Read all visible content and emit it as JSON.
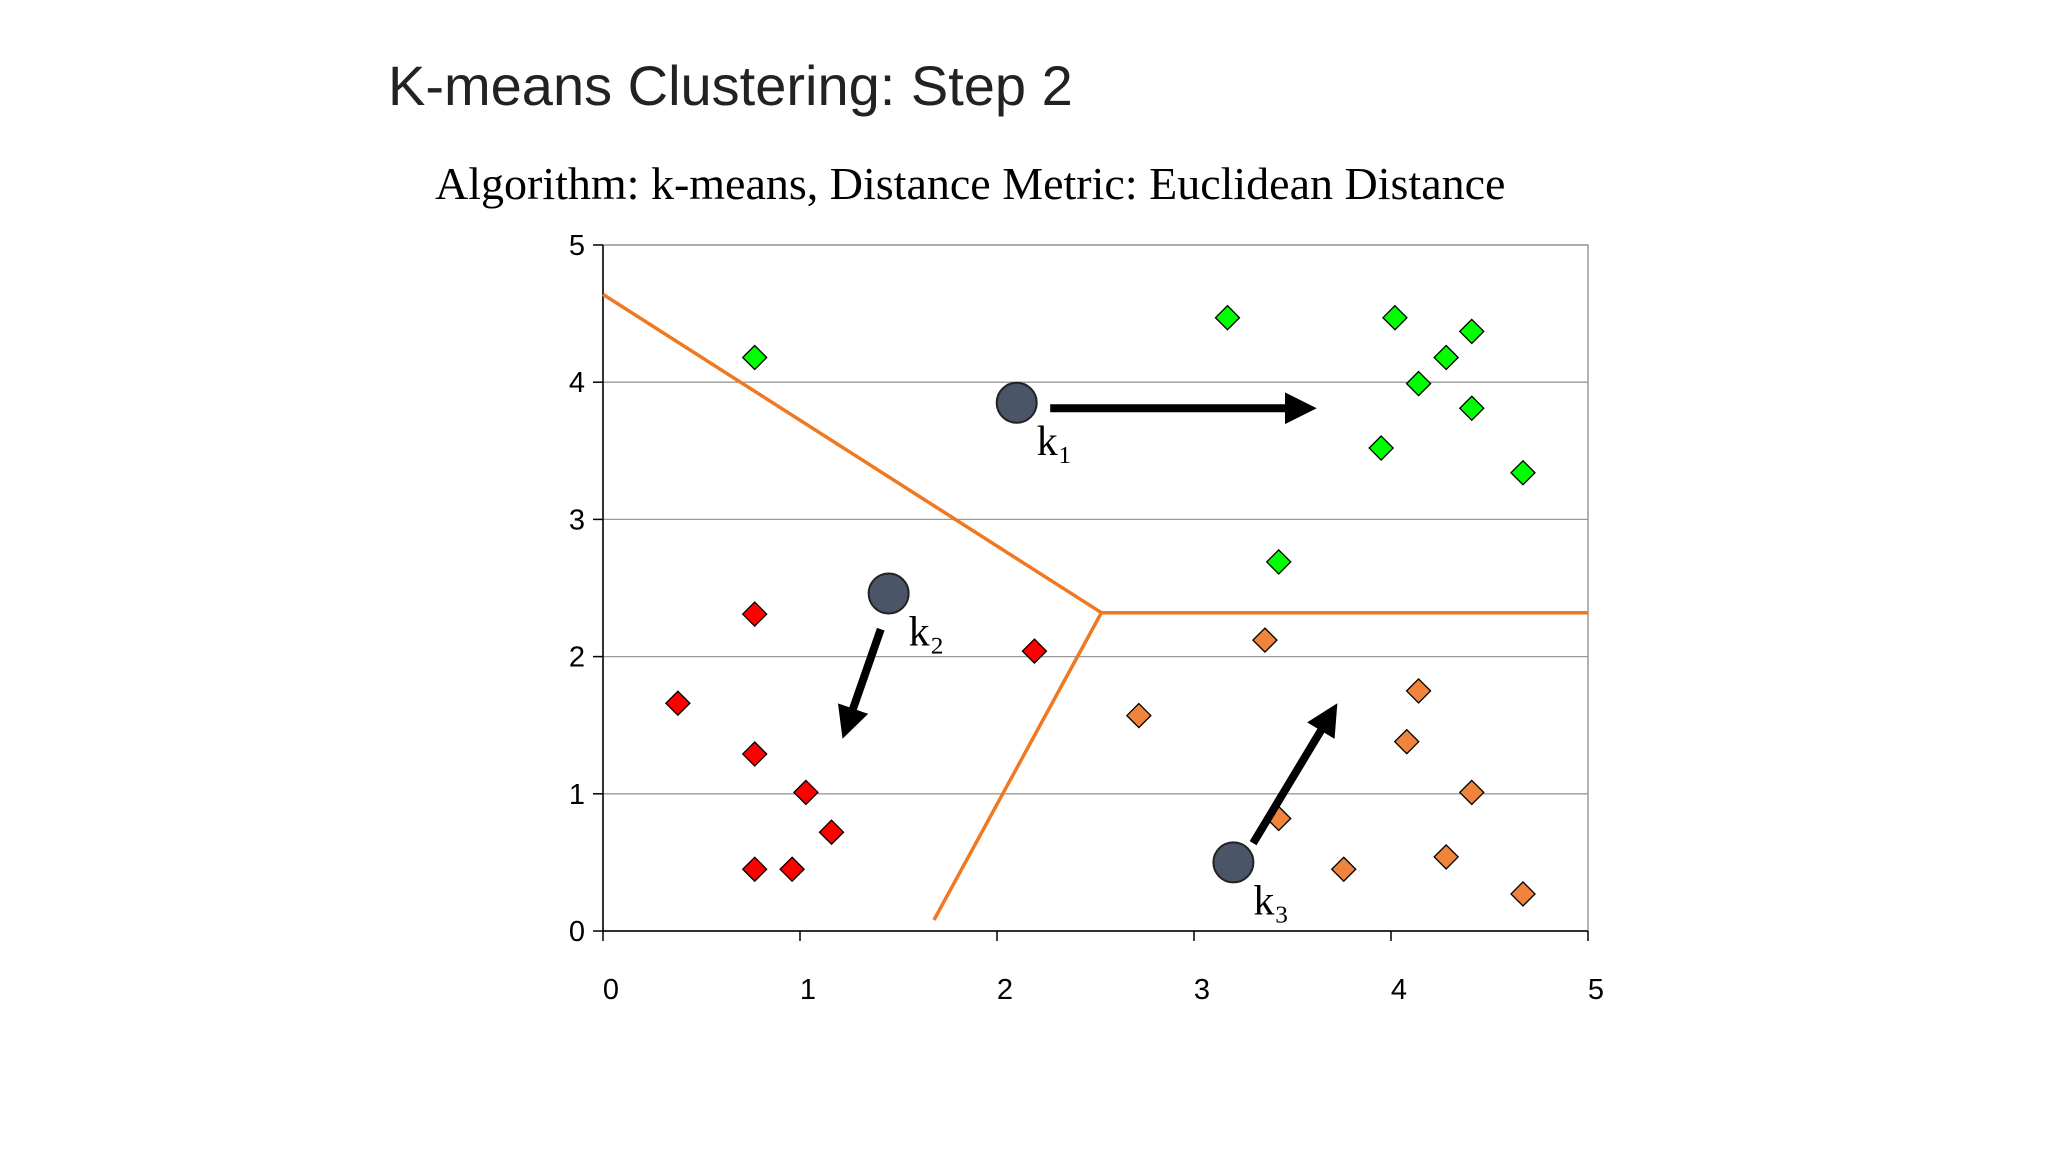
{
  "chart_data": {
    "type": "scatter",
    "title": "K-means Clustering: Step 2",
    "subtitle": "Algorithm: k-means, Distance Metric: Euclidean Distance",
    "xlim": [
      0,
      5
    ],
    "ylim": [
      0,
      5
    ],
    "xticks": [
      0,
      1,
      2,
      3,
      4,
      5
    ],
    "yticks": [
      0,
      1,
      2,
      3,
      4,
      5
    ],
    "grid": true,
    "series": [
      {
        "color": "#00ff00",
        "x": [
          0.77,
          3.17,
          4.02,
          4.28,
          4.41,
          4.14,
          4.41,
          3.95,
          4.67,
          3.43
        ],
        "values": [
          4.18,
          4.47,
          4.47,
          4.18,
          4.37,
          3.99,
          3.81,
          3.52,
          3.34,
          2.69
        ]
      },
      {
        "color": "#ff0000",
        "x": [
          0.77,
          0.38,
          0.77,
          1.03,
          1.16,
          0.77,
          0.96,
          2.19
        ],
        "values": [
          2.31,
          1.66,
          1.29,
          1.01,
          0.72,
          0.45,
          0.45,
          2.04
        ]
      },
      {
        "color": "#f0843c",
        "x": [
          3.36,
          2.72,
          4.14,
          4.08,
          4.41,
          3.43,
          3.76,
          4.28,
          4.67
        ],
        "values": [
          2.12,
          1.57,
          1.75,
          1.38,
          1.01,
          0.82,
          0.45,
          0.54,
          0.27
        ]
      }
    ],
    "centroids": {
      "color": "#4a5568",
      "labels": [
        "k₁",
        "k₂",
        "k₃"
      ],
      "x": [
        2.1,
        1.45,
        3.2
      ],
      "values": [
        3.85,
        2.46,
        0.5
      ]
    },
    "arrows": [
      {
        "x": [
          2.27,
          3.55
        ],
        "values": [
          3.81,
          3.81
        ]
      },
      {
        "x": [
          1.41,
          1.24
        ],
        "values": [
          2.2,
          1.5
        ]
      },
      {
        "x": [
          3.3,
          3.69
        ],
        "values": [
          0.64,
          1.57
        ]
      }
    ],
    "boundaries": {
      "color": "#f07820",
      "lines": [
        {
          "x": [
            0,
            2.53
          ],
          "values": [
            4.64,
            2.32
          ]
        },
        {
          "x": [
            2.53,
            5
          ],
          "values": [
            2.32,
            2.32
          ]
        },
        {
          "x": [
            2.53,
            1.68
          ],
          "values": [
            2.32,
            0.08
          ]
        }
      ]
    }
  }
}
